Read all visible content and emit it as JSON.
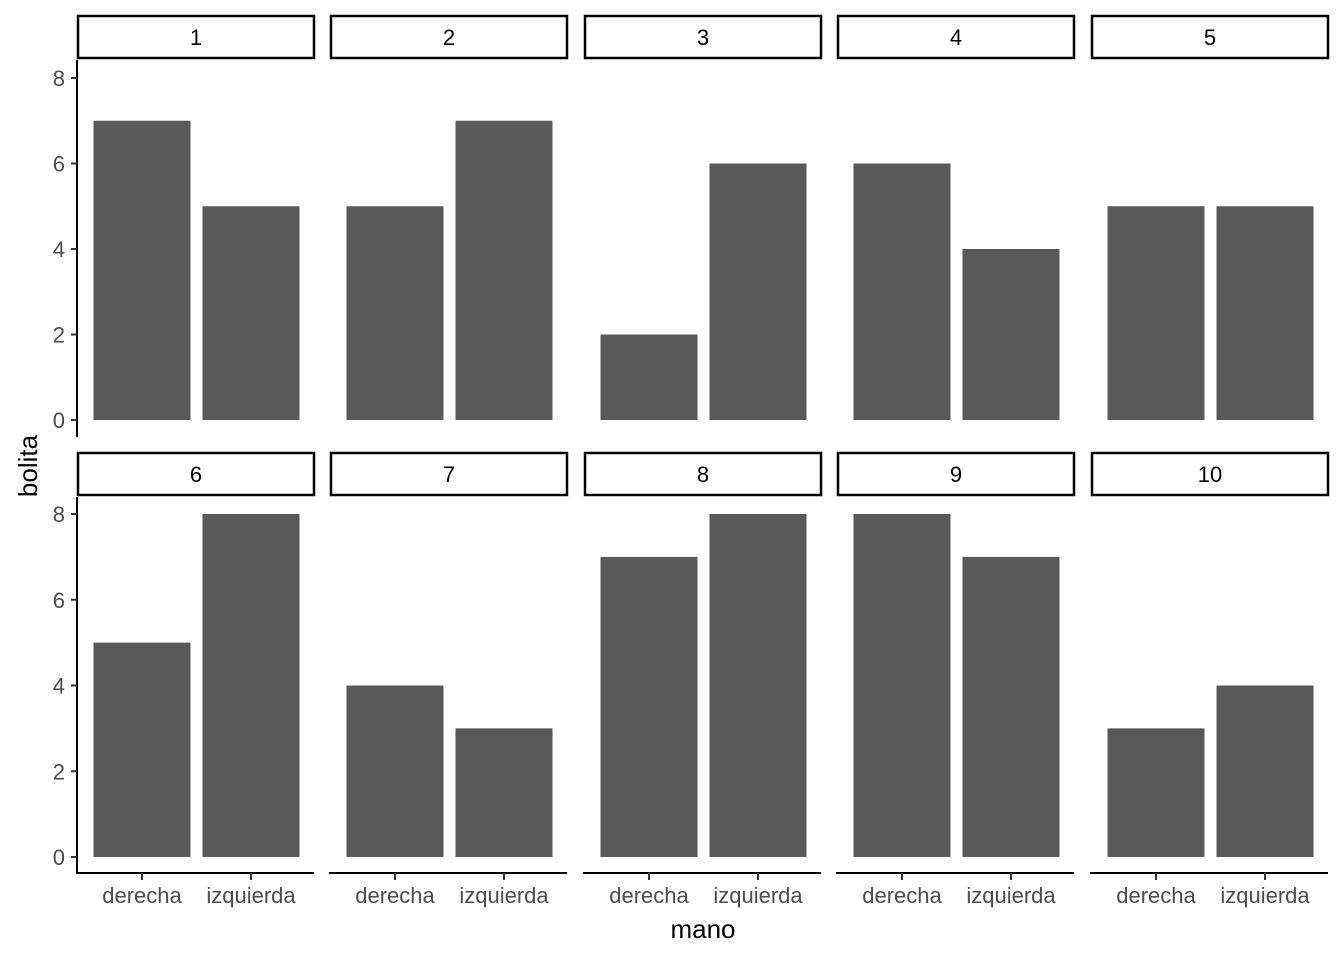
{
  "chart_data": {
    "type": "bar",
    "layout": "facet_wrap",
    "xlabel": "mano",
    "ylabel": "bolita",
    "categories": [
      "derecha",
      "izquierda"
    ],
    "ylim": [
      0,
      8
    ],
    "yticks": [
      0,
      2,
      4,
      6,
      8
    ],
    "bar_color": "#595959",
    "grid": false,
    "facets": [
      {
        "label": "1",
        "values": [
          7,
          5
        ]
      },
      {
        "label": "2",
        "values": [
          5,
          7
        ]
      },
      {
        "label": "3",
        "values": [
          2,
          6
        ]
      },
      {
        "label": "4",
        "values": [
          6,
          4
        ]
      },
      {
        "label": "5",
        "values": [
          5,
          5
        ]
      },
      {
        "label": "6",
        "values": [
          5,
          8
        ]
      },
      {
        "label": "7",
        "values": [
          4,
          3
        ]
      },
      {
        "label": "8",
        "values": [
          7,
          8
        ]
      },
      {
        "label": "9",
        "values": [
          8,
          7
        ]
      },
      {
        "label": "10",
        "values": [
          3,
          4
        ]
      }
    ]
  }
}
